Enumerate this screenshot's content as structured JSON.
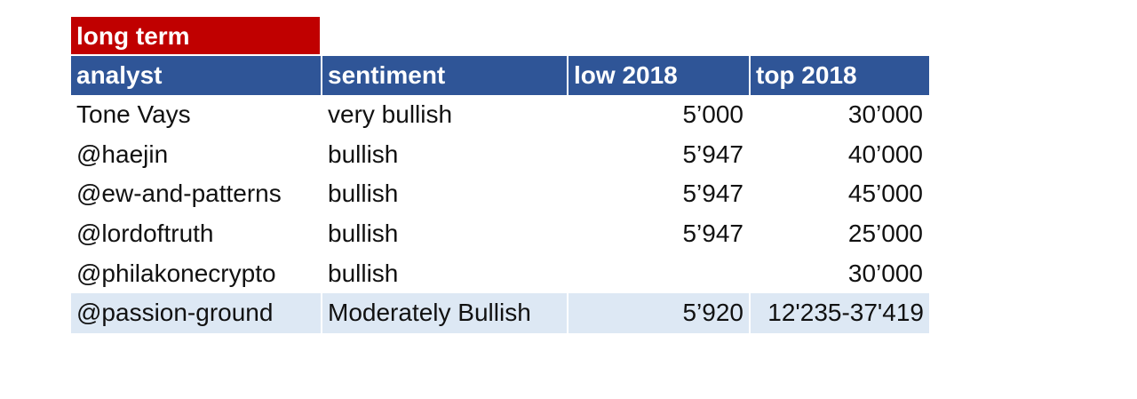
{
  "section": {
    "title": "long term"
  },
  "table": {
    "headers": [
      "analyst",
      "sentiment",
      "low 2018",
      "top 2018"
    ],
    "rows": [
      {
        "analyst": "Tone Vays",
        "sentiment": "very bullish",
        "low": "5’000",
        "top": "30’000"
      },
      {
        "analyst": "@haejin",
        "sentiment": "bullish",
        "low": "5’947",
        "top": "40’000"
      },
      {
        "analyst": "@ew-and-patterns",
        "sentiment": "bullish",
        "low": "5’947",
        "top": "45’000"
      },
      {
        "analyst": "@lordoftruth",
        "sentiment": "bullish",
        "low": "5’947",
        "top": "25’000"
      },
      {
        "analyst": "@philakonecrypto",
        "sentiment": "bullish",
        "low": "",
        "top": "30’000"
      },
      {
        "analyst": "@passion-ground",
        "sentiment": "Moderately Bullish",
        "low": "5’920",
        "top": "12'235-37'419"
      }
    ]
  },
  "colors": {
    "title_bg": "#c00000",
    "header_bg": "#2f5597",
    "highlight_row_bg": "#dde8f4"
  }
}
